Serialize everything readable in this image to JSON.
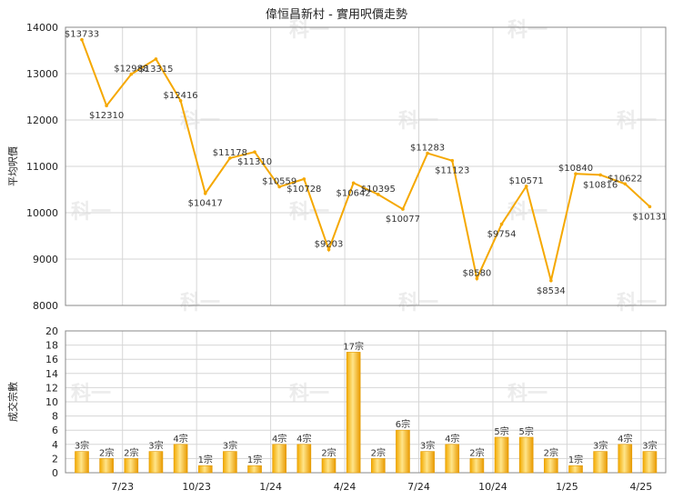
{
  "chart_data": {
    "title": "偉恒昌新村 - 實用呎價走勢",
    "x_ticks": [
      "7/23",
      "10/23",
      "1/24",
      "4/24",
      "7/24",
      "10/24",
      "1/25",
      "4/25"
    ],
    "charts": [
      {
        "type": "line",
        "ylabel": "平均呎價",
        "ylim": [
          8000,
          14000
        ],
        "yticks": [
          8000,
          9000,
          10000,
          11000,
          12000,
          13000,
          14000
        ],
        "grid": true,
        "color": "#f5a800",
        "values": [
          13733,
          12310,
          12988,
          13315,
          12416,
          10417,
          11178,
          11310,
          10559,
          10728,
          9203,
          10642,
          10395,
          10077,
          11283,
          11123,
          8580,
          9754,
          10571,
          8534,
          10840,
          10816,
          10622,
          10131
        ],
        "labels": [
          "$13733",
          "$12310",
          "$12988",
          "$13315",
          "$12416",
          "$10417",
          "$11178",
          "$11310",
          "$10559",
          "$10728",
          "$9203",
          "$10642",
          "$10395",
          "$10077",
          "$11283",
          "$11123",
          "$8580",
          "$9754",
          "$10571",
          "$8534",
          "$10840",
          "$10816",
          "$10622",
          "$10131"
        ]
      },
      {
        "type": "bar",
        "ylabel": "成交宗數",
        "ylim": [
          0,
          20
        ],
        "yticks": [
          0,
          2,
          4,
          6,
          8,
          10,
          12,
          14,
          16,
          18,
          20
        ],
        "grid": true,
        "color": "#f5b21a",
        "values": [
          3,
          2,
          2,
          3,
          4,
          1,
          3,
          1,
          4,
          4,
          2,
          17,
          2,
          6,
          3,
          4,
          2,
          5,
          5,
          2,
          1,
          3,
          4,
          3
        ],
        "labels": [
          "3宗",
          "2宗",
          "2宗",
          "3宗",
          "4宗",
          "1宗",
          "3宗",
          "1宗",
          "4宗",
          "4宗",
          "2宗",
          "17宗",
          "2宗",
          "6宗",
          "3宗",
          "4宗",
          "2宗",
          "5宗",
          "5宗",
          "2宗",
          "1宗",
          "3宗",
          "4宗",
          "3宗"
        ]
      }
    ]
  },
  "watermark": "科一"
}
